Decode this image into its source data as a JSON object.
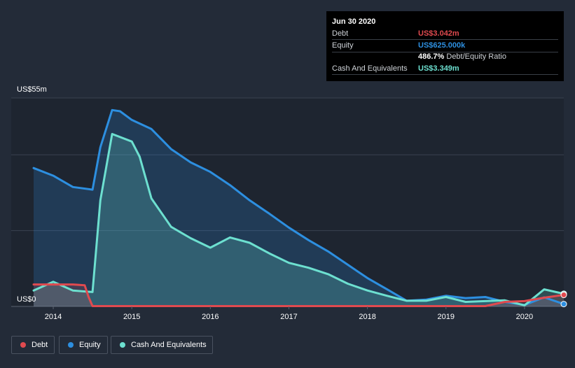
{
  "chart_data": {
    "type": "area",
    "y_top_label": "US$55m",
    "y_bottom_label": "US$0",
    "ylim": [
      0,
      55
    ],
    "grid": true,
    "x_ticks": [
      "2014",
      "2015",
      "2016",
      "2017",
      "2018",
      "2019",
      "2020"
    ],
    "x_range": [
      2013.75,
      2020.5
    ],
    "series": [
      {
        "name": "Debt",
        "color": "#e04a4f",
        "points": [
          [
            2013.75,
            5.8
          ],
          [
            2014.0,
            5.8
          ],
          [
            2014.25,
            5.8
          ],
          [
            2014.4,
            5.6
          ],
          [
            2014.45,
            2.5
          ],
          [
            2014.5,
            0.1
          ],
          [
            2015.0,
            0.1
          ],
          [
            2016.0,
            0.1
          ],
          [
            2017.0,
            0.1
          ],
          [
            2018.0,
            0.1
          ],
          [
            2019.0,
            0.1
          ],
          [
            2019.5,
            0.1
          ],
          [
            2019.75,
            1.2
          ],
          [
            2020.0,
            1.4
          ],
          [
            2020.25,
            2.3
          ],
          [
            2020.5,
            3.042
          ]
        ]
      },
      {
        "name": "Equity",
        "color": "#2d8fe0",
        "points": [
          [
            2013.75,
            36.5
          ],
          [
            2014.0,
            34.5
          ],
          [
            2014.25,
            31.5
          ],
          [
            2014.5,
            30.8
          ],
          [
            2014.6,
            42.0
          ],
          [
            2014.75,
            51.8
          ],
          [
            2014.85,
            51.5
          ],
          [
            2015.0,
            49.2
          ],
          [
            2015.25,
            46.8
          ],
          [
            2015.5,
            41.5
          ],
          [
            2015.75,
            38.0
          ],
          [
            2016.0,
            35.5
          ],
          [
            2016.25,
            32.0
          ],
          [
            2016.5,
            28.0
          ],
          [
            2016.75,
            24.5
          ],
          [
            2017.0,
            20.8
          ],
          [
            2017.25,
            17.5
          ],
          [
            2017.5,
            14.5
          ],
          [
            2017.75,
            11.0
          ],
          [
            2018.0,
            7.5
          ],
          [
            2018.25,
            4.5
          ],
          [
            2018.5,
            1.5
          ],
          [
            2018.75,
            1.8
          ],
          [
            2019.0,
            2.8
          ],
          [
            2019.25,
            2.2
          ],
          [
            2019.5,
            2.5
          ],
          [
            2019.75,
            1.2
          ],
          [
            2020.0,
            0.4
          ],
          [
            2020.25,
            2.4
          ],
          [
            2020.5,
            0.625
          ]
        ]
      },
      {
        "name": "Cash And Equivalents",
        "color": "#6de0d0",
        "points": [
          [
            2013.75,
            4.2
          ],
          [
            2014.0,
            6.5
          ],
          [
            2014.25,
            4.2
          ],
          [
            2014.5,
            3.8
          ],
          [
            2014.6,
            28.0
          ],
          [
            2014.75,
            45.5
          ],
          [
            2015.0,
            43.5
          ],
          [
            2015.1,
            39.5
          ],
          [
            2015.25,
            28.5
          ],
          [
            2015.5,
            21.0
          ],
          [
            2015.75,
            18.0
          ],
          [
            2016.0,
            15.5
          ],
          [
            2016.25,
            18.2
          ],
          [
            2016.5,
            16.8
          ],
          [
            2016.75,
            14.0
          ],
          [
            2017.0,
            11.5
          ],
          [
            2017.25,
            10.2
          ],
          [
            2017.5,
            8.5
          ],
          [
            2017.75,
            6.0
          ],
          [
            2018.0,
            4.2
          ],
          [
            2018.25,
            2.8
          ],
          [
            2018.5,
            1.5
          ],
          [
            2018.75,
            1.5
          ],
          [
            2019.0,
            2.5
          ],
          [
            2019.25,
            1.2
          ],
          [
            2019.5,
            1.4
          ],
          [
            2019.75,
            1.6
          ],
          [
            2020.0,
            0.3
          ],
          [
            2020.25,
            4.5
          ],
          [
            2020.5,
            3.349
          ]
        ]
      }
    ]
  },
  "tooltip": {
    "date": "Jun 30 2020",
    "rows": [
      {
        "label": "Debt",
        "value": "US$3.042m",
        "color": "#e04a4f"
      },
      {
        "label": "Equity",
        "value": "US$625.000k",
        "color": "#2d8fe0"
      },
      {
        "label": "Cash And Equivalents",
        "value": "US$3.349m",
        "color": "#6de0d0"
      }
    ],
    "ratio_value": "486.7%",
    "ratio_label": "Debt/Equity Ratio"
  },
  "legend": [
    {
      "label": "Debt",
      "color": "#e04a4f"
    },
    {
      "label": "Equity",
      "color": "#2d8fe0"
    },
    {
      "label": "Cash And Equivalents",
      "color": "#6de0d0"
    }
  ]
}
